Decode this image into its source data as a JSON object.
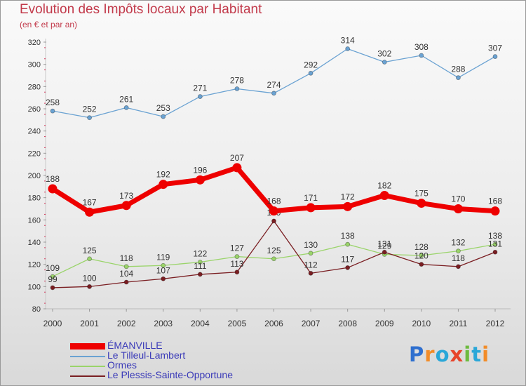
{
  "header": {
    "title": "Evolution des Impôts locaux par Habitant",
    "subtitle": "(en € et par an)"
  },
  "logo": {
    "text": "Proxiti"
  },
  "chart_data": {
    "type": "line",
    "x": [
      "2000",
      "2001",
      "2002",
      "2003",
      "2004",
      "2005",
      "2006",
      "2007",
      "2008",
      "2009",
      "2010",
      "2011",
      "2012"
    ],
    "ylim": [
      80,
      320
    ],
    "yticks": [
      80,
      100,
      120,
      140,
      160,
      180,
      200,
      220,
      240,
      260,
      280,
      300,
      320
    ],
    "grid": false,
    "legend": "bottom-left",
    "series": [
      {
        "name": "ÉMANVILLE",
        "color": "#ee0000",
        "emphasis": true,
        "values": [
          188,
          167,
          173,
          192,
          196,
          207,
          168,
          171,
          172,
          182,
          175,
          170,
          168
        ]
      },
      {
        "name": "Le Tilleul-Lambert",
        "color": "#6aa2d2",
        "values": [
          258,
          252,
          261,
          253,
          271,
          278,
          274,
          292,
          314,
          302,
          308,
          288,
          307
        ]
      },
      {
        "name": "Ormes",
        "color": "#9ad46a",
        "values": [
          109,
          125,
          118,
          119,
          122,
          127,
          125,
          130,
          138,
          129,
          128,
          132,
          138
        ]
      },
      {
        "name": "Le Plessis-Sainte-Opportune",
        "color": "#7a1e22",
        "values": [
          99,
          100,
          104,
          107,
          111,
          113,
          159,
          112,
          117,
          131,
          120,
          118,
          131
        ]
      }
    ]
  }
}
